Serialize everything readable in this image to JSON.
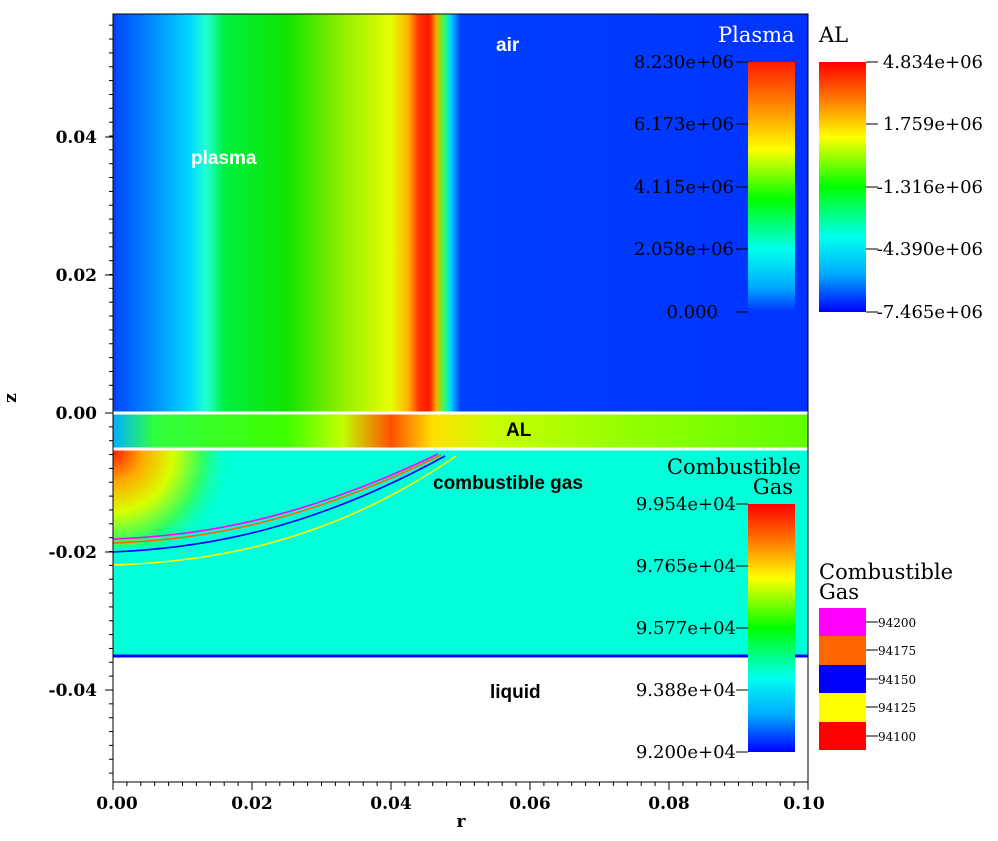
{
  "chart_data": {
    "type": "heatmap",
    "xlabel": "r",
    "ylabel": "z",
    "xlim": [
      0.0,
      0.1
    ],
    "ylim": [
      -0.053,
      0.058
    ],
    "x_ticks": [
      "0.00",
      "0.02",
      "0.04",
      "0.06",
      "0.08",
      "0.10"
    ],
    "y_ticks": [
      "0.04",
      "0.02",
      "0.00",
      "-0.02",
      "-0.04"
    ],
    "regions": [
      {
        "name": "air",
        "label": "air",
        "label_color": "#ffffff",
        "z_range": [
          0.0,
          0.058
        ],
        "r_range": [
          0.048,
          0.1
        ]
      },
      {
        "name": "plasma",
        "label": "plasma",
        "label_color": "#ffffff",
        "z_range": [
          0.0,
          0.058
        ],
        "r_range": [
          0.0,
          0.048
        ]
      },
      {
        "name": "AL",
        "label": "AL",
        "label_color": "#000000",
        "z_range": [
          -0.005,
          0.0
        ]
      },
      {
        "name": "combustible-gas",
        "label": "combustible gas",
        "label_color": "#000000",
        "z_range": [
          -0.035,
          -0.005
        ]
      },
      {
        "name": "liquid",
        "label": "liquid",
        "label_color": "#000000",
        "z_range": [
          -0.053,
          -0.035
        ]
      }
    ],
    "colorbars": [
      {
        "name": "plasma",
        "title": "Plasma",
        "title_color": "#ffffff",
        "ticks": [
          "8.230e+06",
          "6.173e+06",
          "4.115e+06",
          "2.058e+06",
          "0.000"
        ]
      },
      {
        "name": "al",
        "title": "AL",
        "title_color": "#000000",
        "ticks": [
          "4.834e+06",
          "1.759e+06",
          "-1.316e+06",
          "-4.390e+06",
          "-7.465e+06"
        ]
      },
      {
        "name": "combustible-gas",
        "title": "Combustible",
        "title_line2": "Gas",
        "title_color": "#000000",
        "ticks": [
          "9.954e+04",
          "9.765e+04",
          "9.577e+04",
          "9.388e+04",
          "9.200e+04"
        ]
      }
    ],
    "contour_legend": {
      "title": "Combustible",
      "title_line2": "Gas",
      "levels": [
        {
          "value": "94200",
          "color": "#ff00ff"
        },
        {
          "value": "94175",
          "color": "#ff6600"
        },
        {
          "value": "94150",
          "color": "#0000ff"
        },
        {
          "value": "94125",
          "color": "#ffff00"
        },
        {
          "value": "94100",
          "color": "#ff0000"
        }
      ]
    }
  }
}
